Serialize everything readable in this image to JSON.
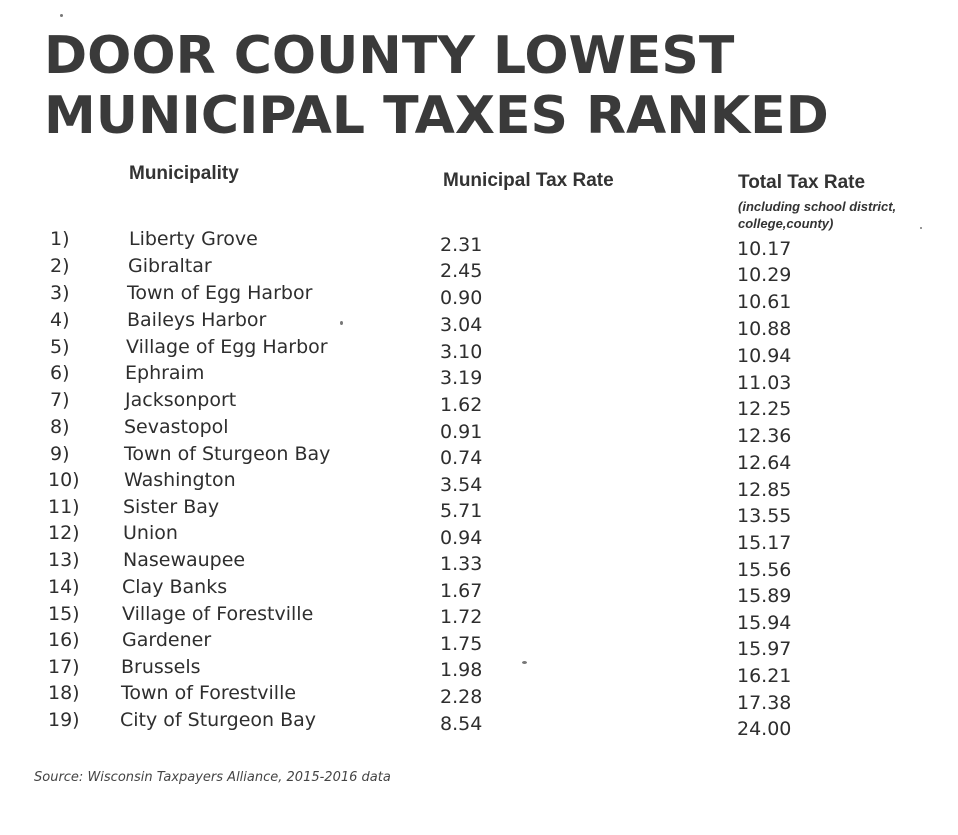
{
  "title": {
    "line1": "DOOR COUNTY LOWEST",
    "line2": "MUNICIPAL TAXES RANKED"
  },
  "headers": {
    "municipality": "Municipality",
    "municipal_rate": "Municipal Tax Rate",
    "total_rate": "Total Tax Rate",
    "total_rate_note": "(including school district, college,county)"
  },
  "rows": [
    {
      "rank": "1)",
      "name": "Liberty Grove",
      "municipal": "2.31",
      "total": "10.17"
    },
    {
      "rank": "2)",
      "name": "Gibraltar",
      "municipal": "2.45",
      "total": "10.29"
    },
    {
      "rank": "3)",
      "name": "Town of Egg Harbor",
      "municipal": "0.90",
      "total": "10.61"
    },
    {
      "rank": "4)",
      "name": "Baileys Harbor",
      "municipal": "3.04",
      "total": "10.88"
    },
    {
      "rank": "5)",
      "name": "Village of Egg Harbor",
      "municipal": "3.10",
      "total": "10.94"
    },
    {
      "rank": "6)",
      "name": "Ephraim",
      "municipal": "3.19",
      "total": "11.03"
    },
    {
      "rank": "7)",
      "name": "Jacksonport",
      "municipal": "1.62",
      "total": "12.25"
    },
    {
      "rank": "8)",
      "name": "Sevastopol",
      "municipal": "0.91",
      "total": "12.36"
    },
    {
      "rank": "9)",
      "name": "Town of Sturgeon Bay",
      "municipal": "0.74",
      "total": "12.64"
    },
    {
      "rank": "10)",
      "name": "Washington",
      "municipal": "3.54",
      "total": "12.85"
    },
    {
      "rank": "11)",
      "name": "Sister Bay",
      "municipal": "5.71",
      "total": "13.55"
    },
    {
      "rank": "12)",
      "name": "Union",
      "municipal": "0.94",
      "total": "15.17"
    },
    {
      "rank": "13)",
      "name": "Nasewaupee",
      "municipal": "1.33",
      "total": "15.56"
    },
    {
      "rank": "14)",
      "name": "Clay Banks",
      "municipal": "1.67",
      "total": "15.89"
    },
    {
      "rank": "15)",
      "name": "Village of Forestville",
      "municipal": "1.72",
      "total": "15.94"
    },
    {
      "rank": "16)",
      "name": "Gardener",
      "municipal": "1.75",
      "total": "15.97"
    },
    {
      "rank": "17)",
      "name": "Brussels",
      "municipal": "1.98",
      "total": "16.21"
    },
    {
      "rank": "18)",
      "name": "Town of Forestville",
      "municipal": "2.28",
      "total": "17.38"
    },
    {
      "rank": "19)",
      "name": "City of Sturgeon Bay",
      "municipal": "8.54",
      "total": "24.00"
    }
  ],
  "source": "Source: Wisconsin Taxpayers Alliance, 2015-2016 data"
}
